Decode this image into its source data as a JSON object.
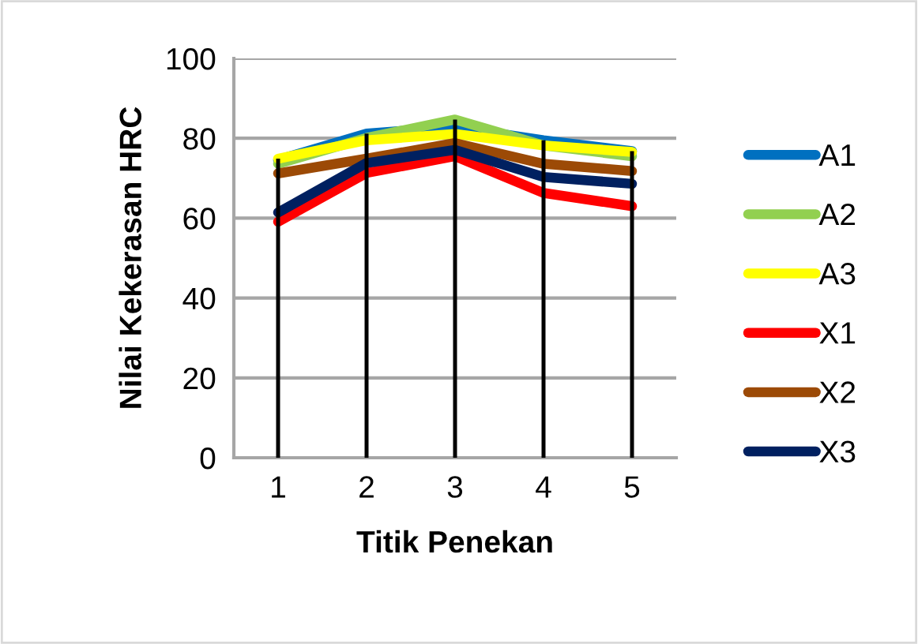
{
  "chart_data": {
    "type": "line",
    "xlabel": "Titik Penekan",
    "ylabel": "Nilai Kekerasan HRC",
    "categories": [
      "1",
      "2",
      "3",
      "4",
      "5"
    ],
    "series": [
      {
        "name": "A1",
        "color": "#0070c0",
        "values": [
          74.6,
          81.2,
          82.8,
          79.5,
          76.8
        ]
      },
      {
        "name": "A2",
        "color": "#92d050",
        "values": [
          73.6,
          80.1,
          84.7,
          78.2,
          75.5
        ]
      },
      {
        "name": "A3",
        "color": "#ffff00",
        "values": [
          74.9,
          79.5,
          81.1,
          78.2,
          76.6
        ]
      },
      {
        "name": "X1",
        "color": "#ff0000",
        "values": [
          59.1,
          71.3,
          75.5,
          66.3,
          63.0
        ]
      },
      {
        "name": "X2",
        "color": "#9c4a06",
        "values": [
          71.2,
          74.9,
          78.8,
          73.6,
          71.8
        ]
      },
      {
        "name": "X3",
        "color": "#002060",
        "values": [
          61.4,
          73.8,
          77.1,
          70.3,
          68.6
        ]
      }
    ],
    "ylim": [
      0,
      100
    ],
    "yticks": [
      0,
      20,
      40,
      60,
      80,
      100
    ],
    "grid": true,
    "legend": "right",
    "marker": "none",
    "line_style": "solid"
  }
}
